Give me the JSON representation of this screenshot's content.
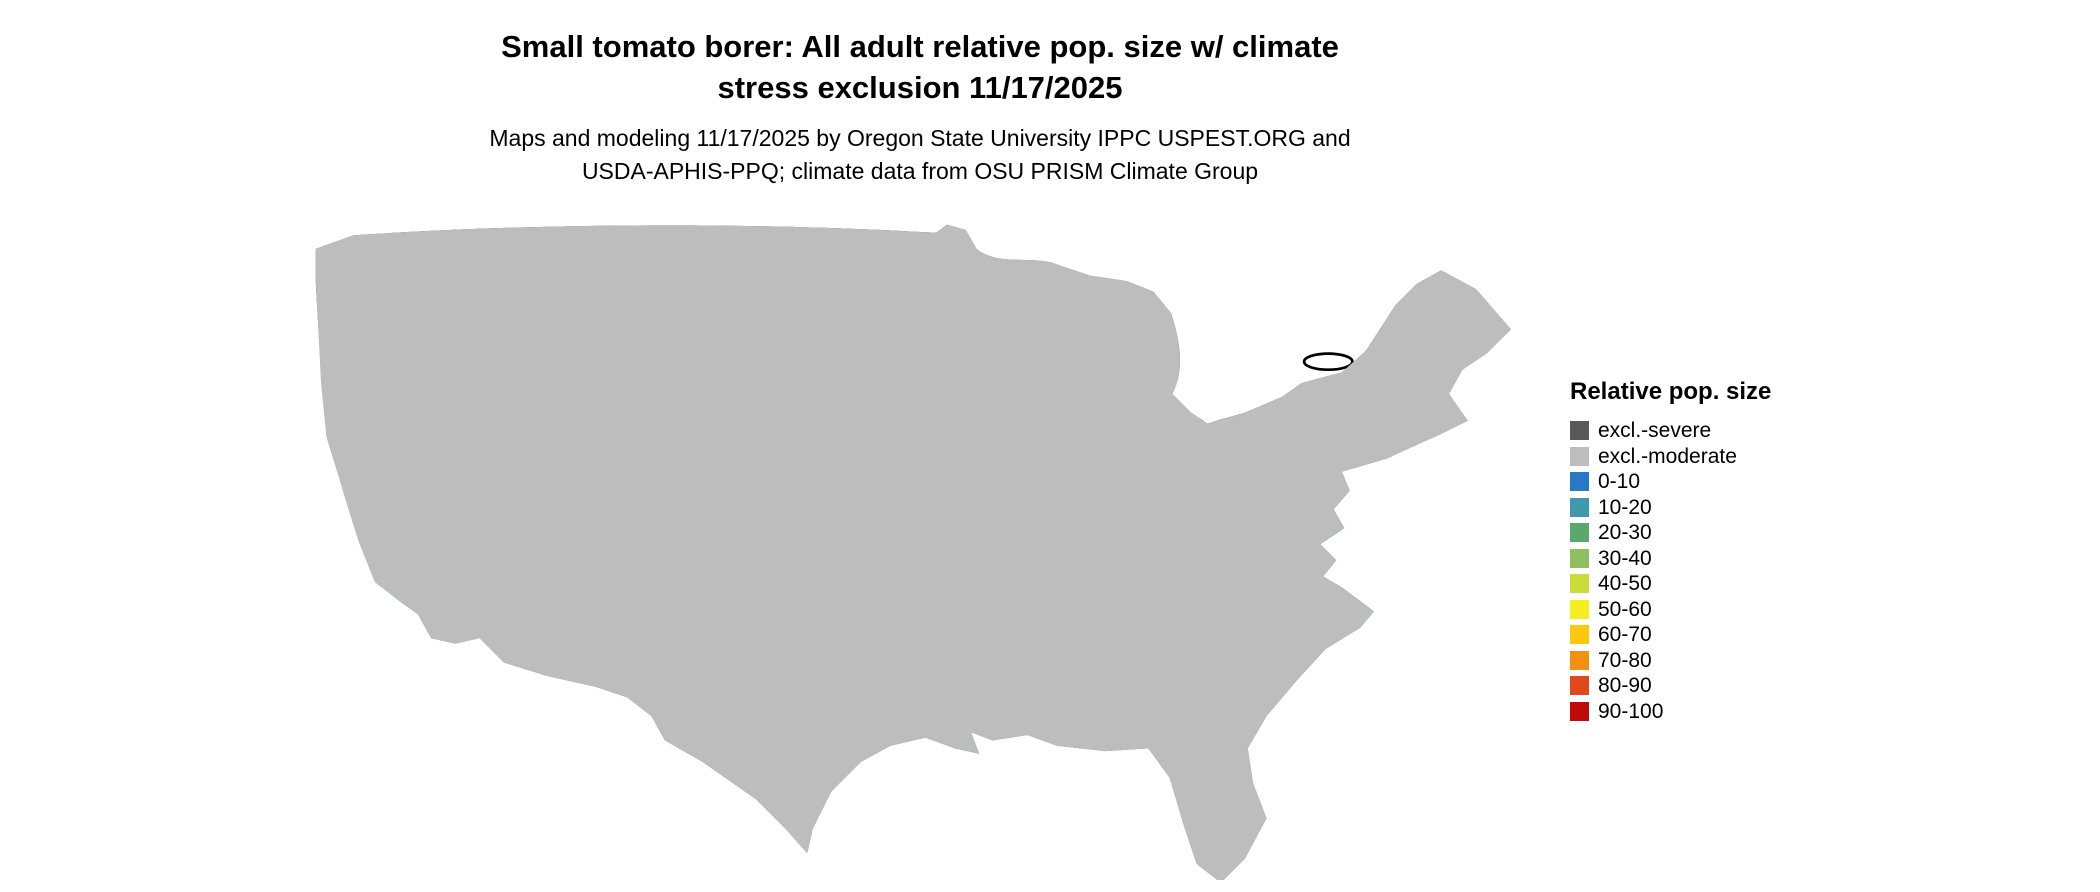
{
  "header": {
    "title_line1": "Small tomato borer: All adult relative pop. size w/ climate",
    "title_line2": "stress exclusion 11/17/2025",
    "subtitle_line1": "Maps and modeling 11/17/2025 by Oregon State University IPPC USPEST.ORG and",
    "subtitle_line2": "USDA-APHIS-PPQ; climate data from OSU PRISM Climate Group"
  },
  "map": {
    "depicts": "Continental United States"
  },
  "legend": {
    "title": "Relative pop. size",
    "items": [
      {
        "label": "excl.-severe",
        "color": "#595959"
      },
      {
        "label": "excl.-moderate",
        "color": "#bdbdbd"
      },
      {
        "label": "0-10",
        "color": "#2878c8"
      },
      {
        "label": "10-20",
        "color": "#3f98ae"
      },
      {
        "label": "20-30",
        "color": "#5aa86a"
      },
      {
        "label": "30-40",
        "color": "#8fc05f"
      },
      {
        "label": "40-50",
        "color": "#cbdc3a"
      },
      {
        "label": "50-60",
        "color": "#f6ee20"
      },
      {
        "label": "60-70",
        "color": "#fbc80e"
      },
      {
        "label": "70-80",
        "color": "#f29111"
      },
      {
        "label": "80-90",
        "color": "#df491c"
      },
      {
        "label": "90-100",
        "color": "#c00a0a"
      }
    ]
  }
}
